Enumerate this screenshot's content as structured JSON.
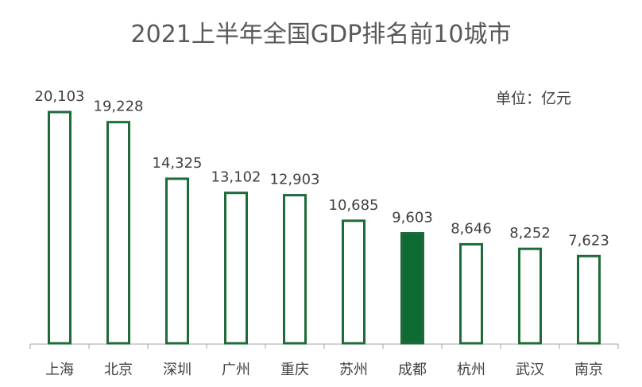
{
  "chart_data": {
    "type": "bar",
    "title": "2021上半年全国GDP排名前10城市",
    "unit_label": "单位：亿元",
    "categories": [
      "上海",
      "北京",
      "深圳",
      "广州",
      "重庆",
      "苏州",
      "成都",
      "杭州",
      "武汉",
      "南京"
    ],
    "values": [
      20103,
      19228,
      14325,
      13102,
      12903,
      10685,
      9603,
      8646,
      8252,
      7623
    ],
    "value_labels": [
      "20,103",
      "19,228",
      "14,325",
      "13,102",
      "12,903",
      "10,685",
      "9,603",
      "8,646",
      "8,252",
      "7,623"
    ],
    "highlight_category": "成都",
    "ylim": [
      0,
      20103
    ],
    "grid": false,
    "xlabel": "",
    "ylabel": "",
    "colors": {
      "bar_outline": "#1e6b3a",
      "highlight_fill": "#0e6b34",
      "axis": "#a6a6a6",
      "text": "#404040"
    }
  }
}
